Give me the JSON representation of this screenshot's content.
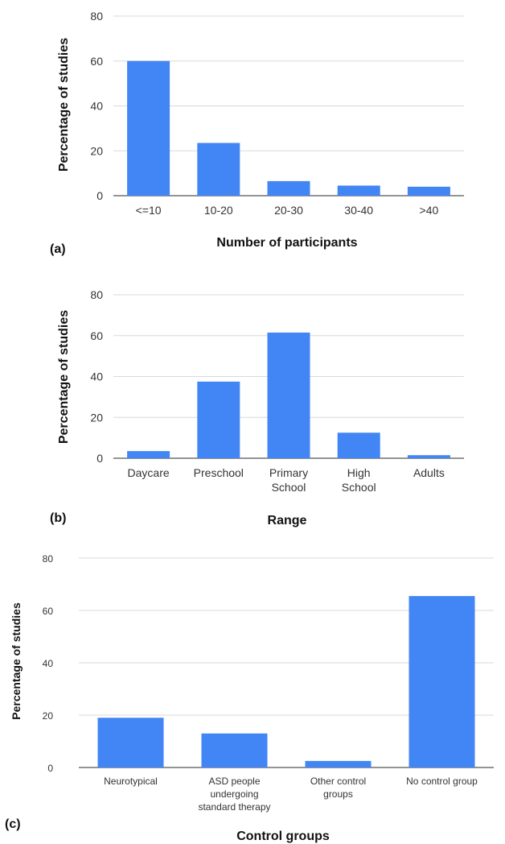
{
  "colors": {
    "bar": "#4285f4",
    "grid": "#d9d9d9",
    "axis": "#555555"
  },
  "chart_data": [
    {
      "type": "bar",
      "panel_label": "(a)",
      "categories": [
        "<=10",
        "10-20",
        "20-30",
        "30-40",
        ">40"
      ],
      "values": [
        60,
        23.5,
        6.5,
        4.5,
        4
      ],
      "xlabel": "Number of participants",
      "ylabel": "Percentage of studies",
      "ylim": [
        0,
        80
      ],
      "yticks": [
        0,
        20,
        40,
        60,
        80
      ],
      "grid": true
    },
    {
      "type": "bar",
      "panel_label": "(b)",
      "categories": [
        "Daycare",
        "Preschool",
        "Primary School",
        "High School",
        "Adults"
      ],
      "values": [
        3.5,
        37.5,
        61.5,
        12.5,
        1.5
      ],
      "xlabel": "Range",
      "ylabel": "Percentage of studies",
      "ylim": [
        0,
        80
      ],
      "yticks": [
        0,
        20,
        40,
        60,
        80
      ],
      "grid": true
    },
    {
      "type": "bar",
      "panel_label": "(c)",
      "categories": [
        "Neurotypical",
        "ASD people undergoing standard therapy",
        "Other control groups",
        "No control group"
      ],
      "values": [
        19,
        13,
        2.5,
        65.5
      ],
      "xlabel": "Control groups",
      "ylabel": "Percentage of studies",
      "ylim": [
        0,
        80
      ],
      "yticks": [
        0,
        20,
        40,
        60,
        80
      ],
      "grid": true
    }
  ]
}
